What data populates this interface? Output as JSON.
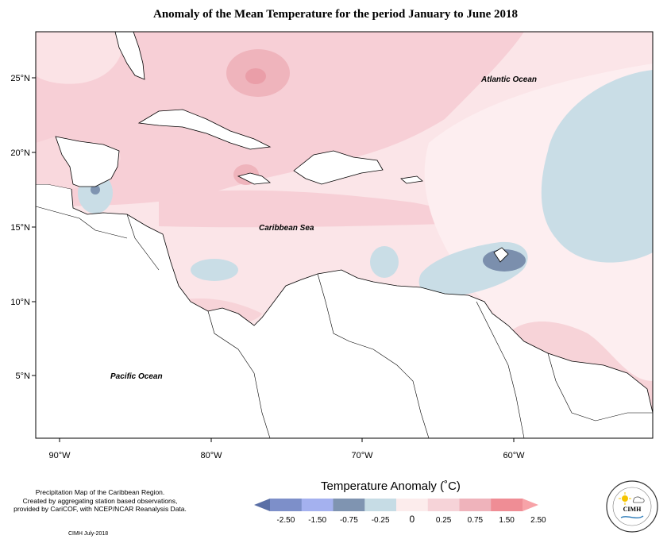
{
  "title": "Anomaly of the Mean Temperature for the period January to June 2018",
  "axes": {
    "lat_labels": [
      "25°N",
      "20°N",
      "15°N",
      "10°N",
      "5°N"
    ],
    "lon_labels": [
      "90°W",
      "80°W",
      "70°W",
      "60°W"
    ]
  },
  "places": {
    "atlantic": "Atlantic Ocean",
    "caribbean": "Caribbean Sea",
    "pacific": "Pacific Ocean"
  },
  "legend": {
    "title": "Temperature Anomaly (˚C)",
    "tick_labels": [
      "-2.50",
      "-1.50",
      "-0.75",
      "-0.25",
      "0",
      "0.25",
      "0.75",
      "1.50",
      "2.50"
    ],
    "colors": [
      "#5a6fa6",
      "#7d8fc9",
      "#a4b1ef",
      "#7f94b1",
      "#c6dce5",
      "#fcecec",
      "#f6d3d8",
      "#efb3bb",
      "#ef8d95",
      "#f7a3a8"
    ]
  },
  "credits": {
    "line1": "Precipitation Map of the Caribbean Region.",
    "line2": "Created by aggregating station based observations,",
    "line3": "provided by CariCOF, with NCEP/NCAR Reanalysis Data.",
    "stamp": "CIMH July-2018",
    "logo_text": "CIMH"
  },
  "colors": {
    "warm_light": "#fbe6e8",
    "warm": "#f7d0d6",
    "warm_strong": "#efb0b8",
    "cool": "#c8dde6",
    "cool_strong": "#7b8fad",
    "land": "#ffffff"
  }
}
